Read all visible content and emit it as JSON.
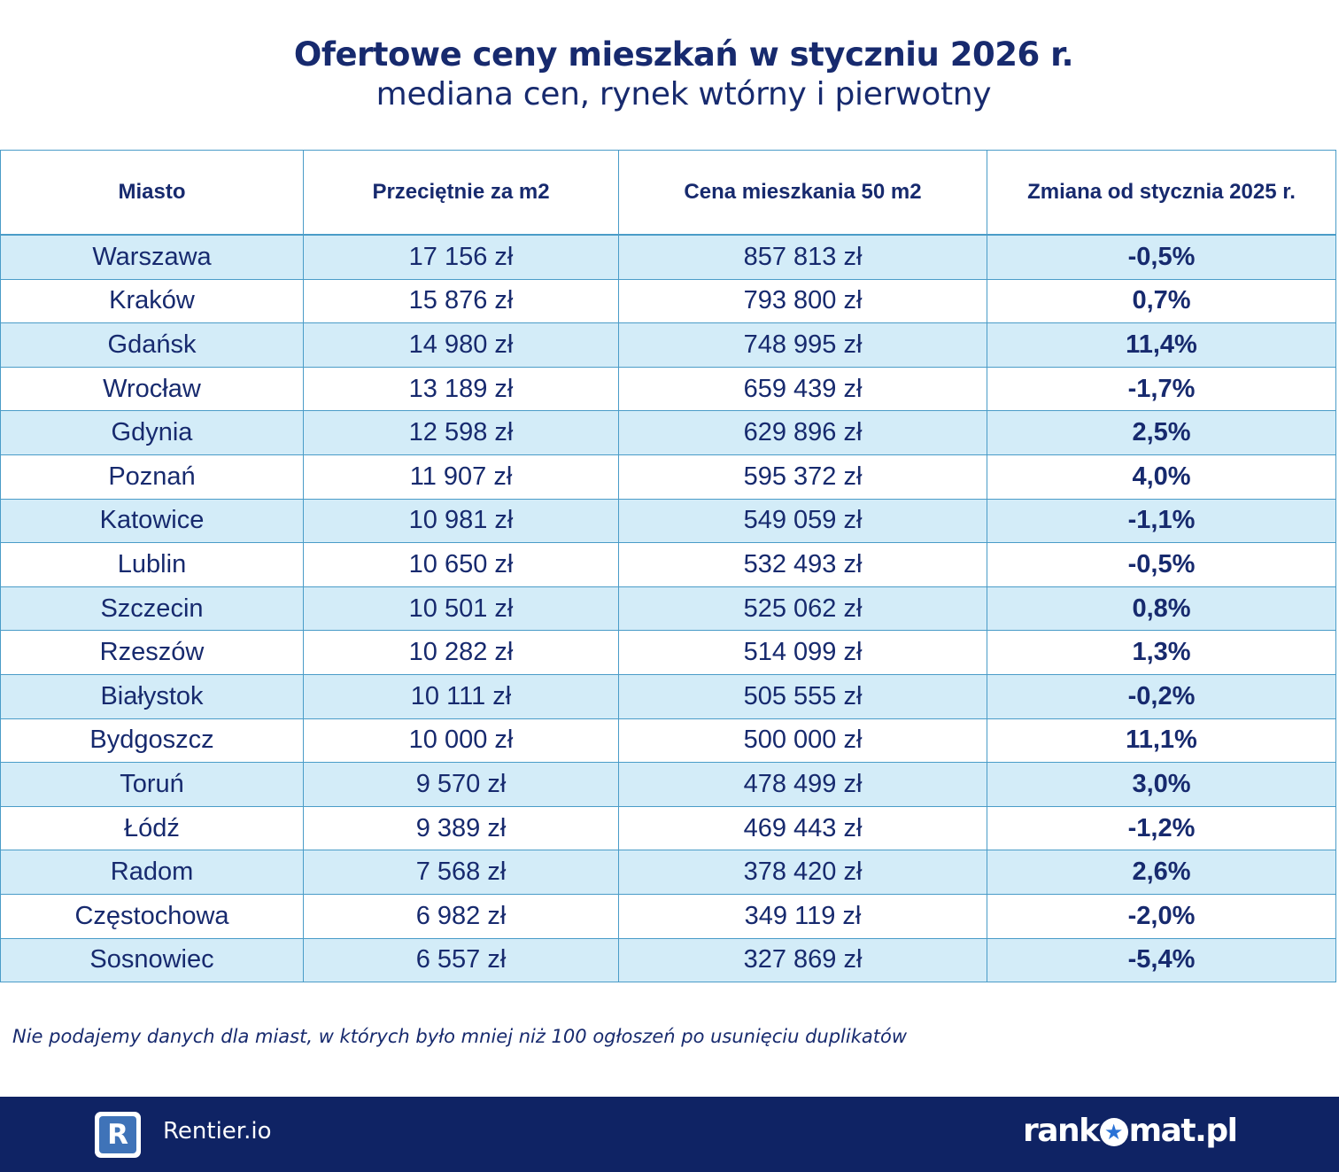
{
  "header": {
    "title": "Ofertowe ceny mieszkań w styczniu 2026 r.",
    "subtitle": "mediana cen, rynek wtórny i pierwotny"
  },
  "table": {
    "columns": [
      "Miasto",
      "Przeciętnie za m2",
      "Cena mieszkania 50 m2",
      "Zmiana od stycznia 2025 r."
    ],
    "rows": [
      {
        "city": "Warszawa",
        "per_m2": "17 156 zł",
        "price_50": "857 813 zł",
        "change": "-0,5%"
      },
      {
        "city": "Kraków",
        "per_m2": "15 876 zł",
        "price_50": "793 800 zł",
        "change": "0,7%"
      },
      {
        "city": "Gdańsk",
        "per_m2": "14 980 zł",
        "price_50": "748 995 zł",
        "change": "11,4%"
      },
      {
        "city": "Wrocław",
        "per_m2": "13 189 zł",
        "price_50": "659 439 zł",
        "change": "-1,7%"
      },
      {
        "city": "Gdynia",
        "per_m2": "12 598 zł",
        "price_50": "629 896 zł",
        "change": "2,5%"
      },
      {
        "city": "Poznań",
        "per_m2": "11 907 zł",
        "price_50": "595 372 zł",
        "change": "4,0%"
      },
      {
        "city": "Katowice",
        "per_m2": "10 981 zł",
        "price_50": "549 059 zł",
        "change": "-1,1%"
      },
      {
        "city": "Lublin",
        "per_m2": "10 650 zł",
        "price_50": "532 493 zł",
        "change": "-0,5%"
      },
      {
        "city": "Szczecin",
        "per_m2": "10 501 zł",
        "price_50": "525 062 zł",
        "change": "0,8%"
      },
      {
        "city": "Rzeszów",
        "per_m2": "10 282 zł",
        "price_50": "514 099 zł",
        "change": "1,3%"
      },
      {
        "city": "Białystok",
        "per_m2": "10 111 zł",
        "price_50": "505 555 zł",
        "change": "-0,2%"
      },
      {
        "city": "Bydgoszcz",
        "per_m2": "10 000 zł",
        "price_50": "500 000 zł",
        "change": "11,1%"
      },
      {
        "city": "Toruń",
        "per_m2": "9 570 zł",
        "price_50": "478 499 zł",
        "change": "3,0%"
      },
      {
        "city": "Łódź",
        "per_m2": "9 389 zł",
        "price_50": "469 443 zł",
        "change": "-1,2%"
      },
      {
        "city": "Radom",
        "per_m2": "7 568 zł",
        "price_50": "378 420 zł",
        "change": "2,6%"
      },
      {
        "city": "Częstochowa",
        "per_m2": "6 982 zł",
        "price_50": "349 119 zł",
        "change": "-2,0%"
      },
      {
        "city": "Sosnowiec",
        "per_m2": "6 557 zł",
        "price_50": "327 869 zł",
        "change": "-5,4%"
      }
    ]
  },
  "footnote": "Nie podajemy danych dla miast, w których było mniej niż 100 ogłoszeń po usunięciu duplikatów",
  "footer": {
    "rentier_logo_letter": "R",
    "rentier_name": "Rentier.io",
    "rankomat_pre": "rank",
    "rankomat_post": "mat.pl",
    "rankomat_star": "★"
  },
  "colors": {
    "navy": "#172a6e",
    "row_alt": "#d3ecf8",
    "border": "#4a9cc8",
    "footer_bg": "#0f2364"
  }
}
